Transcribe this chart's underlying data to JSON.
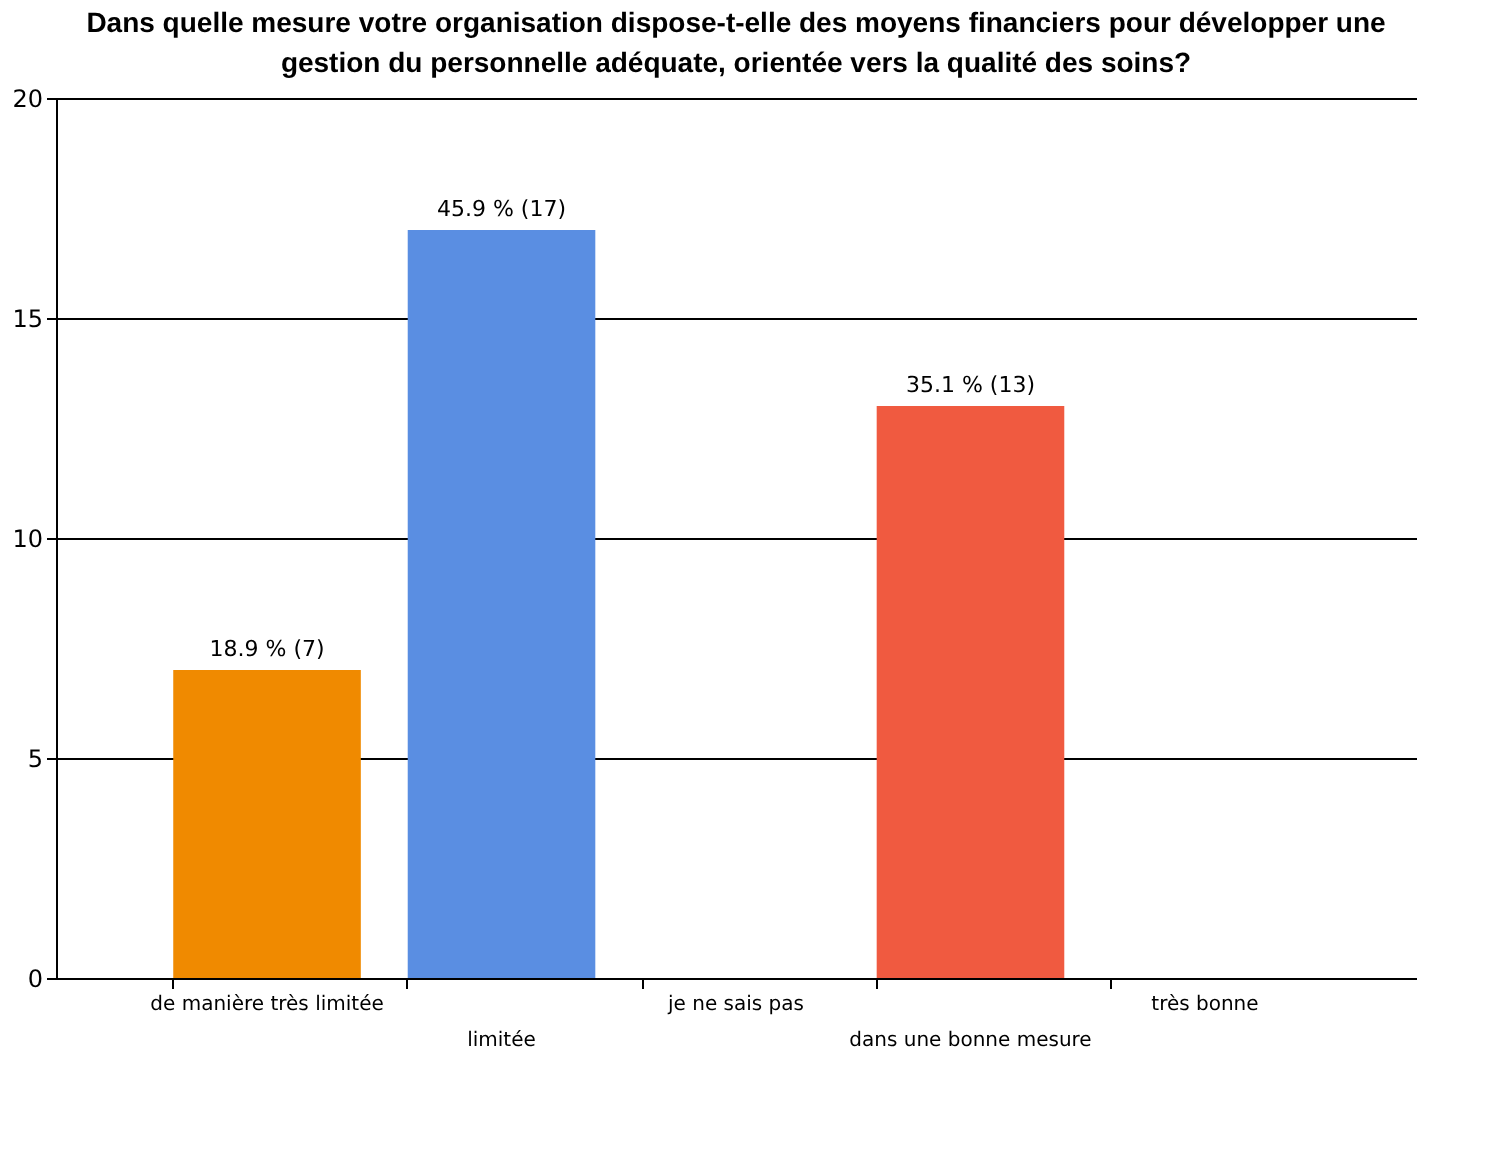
{
  "chart_data": {
    "type": "bar",
    "title": "Dans quelle mesure votre organisation dispose-t-elle des moyens financiers pour développer une gestion du personnelle adéquate, orientée vers la qualité des soins?",
    "categories": [
      "de manière très limitée",
      "limitée",
      "je ne sais pas",
      "dans une bonne mesure",
      "très bonne"
    ],
    "values": [
      7,
      17,
      0,
      13,
      0
    ],
    "colors": [
      "#f08a00",
      "#5a8ee2",
      "#888888",
      "#f05a40",
      "#888888"
    ],
    "value_labels": [
      "18.9 % (7)",
      "45.9 % (17)",
      null,
      "35.1 % (13)",
      null
    ],
    "ylim": [
      0,
      20
    ],
    "yticks": [
      0,
      5,
      10,
      15,
      20
    ],
    "grid": "y"
  }
}
